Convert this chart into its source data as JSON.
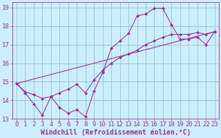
{
  "background_color": "#cceeff",
  "grid_color": "#99cccc",
  "line_color": "#993399",
  "xlabel": "Windchill (Refroidissement éolien,°C)",
  "xlim": [
    -0.5,
    23.5
  ],
  "ylim": [
    13,
    19.3
  ],
  "xticks": [
    0,
    1,
    2,
    3,
    4,
    5,
    6,
    7,
    8,
    9,
    10,
    11,
    12,
    13,
    14,
    15,
    16,
    17,
    18,
    19,
    20,
    21,
    22,
    23
  ],
  "yticks": [
    13,
    14,
    15,
    16,
    17,
    18,
    19
  ],
  "line1_x": [
    0,
    1,
    2,
    3,
    4,
    5,
    6,
    7,
    8,
    9,
    10,
    11,
    12,
    13,
    14,
    15,
    16,
    17,
    18,
    19,
    20,
    21,
    22,
    23
  ],
  "line1_y": [
    14.9,
    14.4,
    13.8,
    13.2,
    14.2,
    13.6,
    13.3,
    13.5,
    13.1,
    14.5,
    15.5,
    16.8,
    17.2,
    17.6,
    18.55,
    18.65,
    18.95,
    18.95,
    18.05,
    17.3,
    17.3,
    17.4,
    17.0,
    17.7
  ],
  "line2_x": [
    0,
    1,
    2,
    3,
    4,
    5,
    6,
    7,
    8,
    9,
    10,
    11,
    12,
    13,
    14,
    15,
    16,
    17,
    18,
    19,
    20,
    21,
    22,
    23
  ],
  "line2_y": [
    14.9,
    14.45,
    14.3,
    14.1,
    14.2,
    14.4,
    14.6,
    14.85,
    14.4,
    15.1,
    15.6,
    16.0,
    16.3,
    16.5,
    16.7,
    17.0,
    17.2,
    17.4,
    17.55,
    17.55,
    17.55,
    17.65,
    17.55,
    17.7
  ],
  "line3_x": [
    0,
    23
  ],
  "line3_y": [
    14.9,
    17.7
  ],
  "fontsize_xlabel": 7,
  "tick_fontsize": 6.5
}
